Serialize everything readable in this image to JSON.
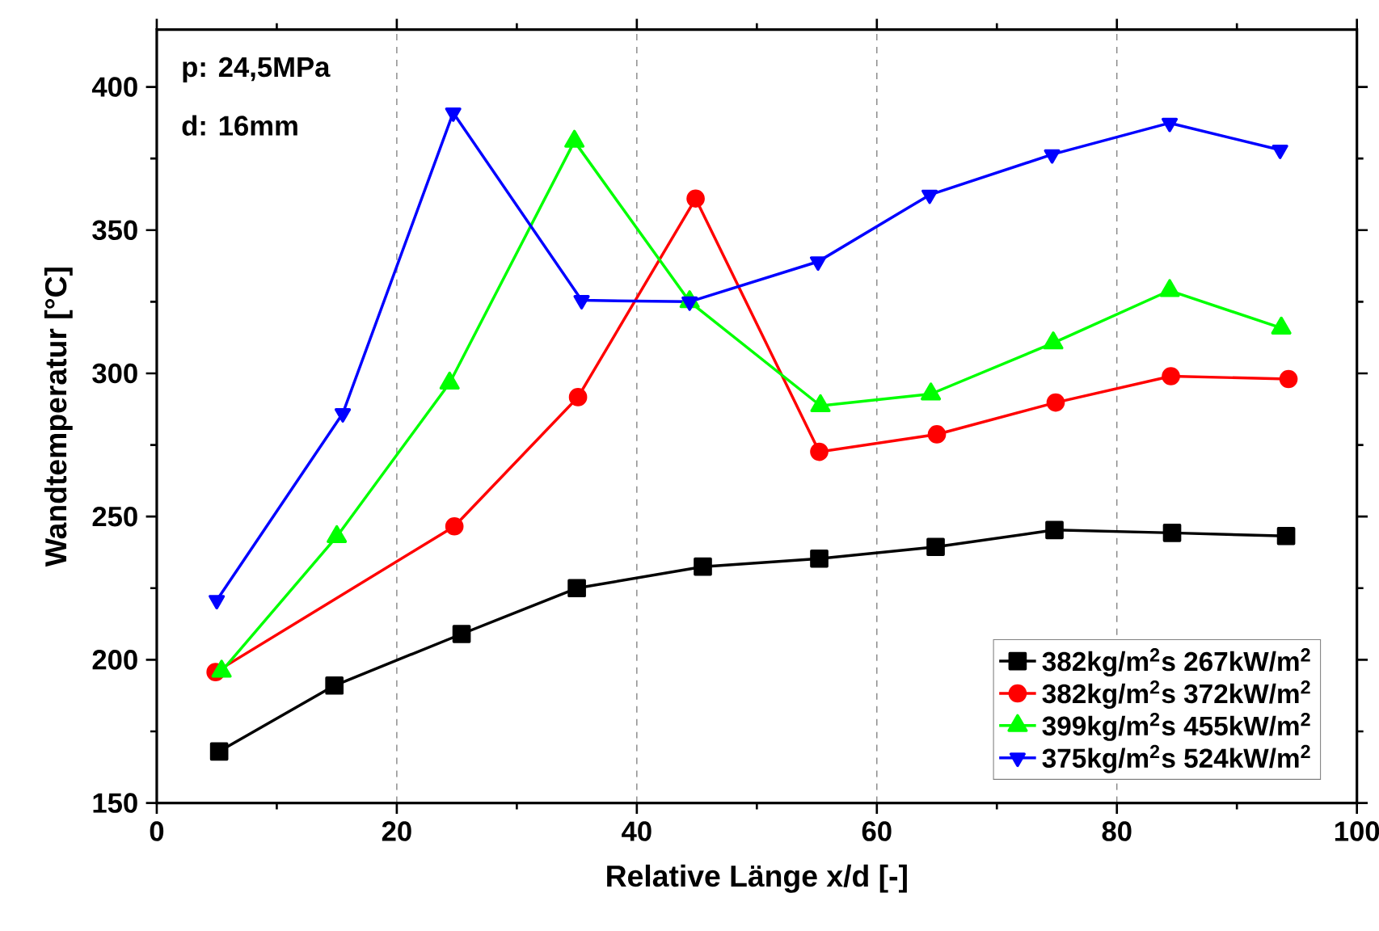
{
  "chart_data": {
    "type": "line",
    "xlabel": "Relative Länge x/d [-]",
    "ylabel": "Wandtemperatur [°C]",
    "annotations": [
      "p: 24,5MPa",
      "d: 16mm"
    ],
    "xlim": [
      0,
      100
    ],
    "xticks": [
      0,
      20,
      40,
      60,
      80,
      100
    ],
    "ylim": [
      150,
      420
    ],
    "yticks": [
      150,
      200,
      250,
      300,
      350,
      400
    ],
    "grid": "x",
    "legend": "bottom right",
    "line_style": "solid",
    "series": [
      {
        "name": "382kg/m$^{2}$s 267kW/m$^{2}$",
        "color": "#000000",
        "marker": "square",
        "x": [
          5.2,
          14.8,
          25.4,
          35,
          45.5,
          55.2,
          64.9,
          74.8,
          84.6,
          94.1
        ],
        "values": [
          168,
          191,
          209,
          225,
          232.5,
          235.3,
          239.4,
          245.3,
          244.3,
          243.2
        ]
      },
      {
        "name": "382kg/m$^{2}$s 372kW/m$^{2}$",
        "color": "#ff0000",
        "marker": "circle",
        "x": [
          4.9,
          24.8,
          35.1,
          44.9,
          55.2,
          65,
          74.9,
          84.5,
          94.3
        ],
        "values": [
          195.7,
          246.6,
          291.7,
          361,
          272.6,
          278.7,
          289.8,
          299,
          298
        ]
      },
      {
        "name": "399kg/m$^{2}$s 455kW/m$^{2}$",
        "color": "#00ff00",
        "marker": "triangle",
        "x": [
          5.4,
          15,
          24.4,
          34.8,
          44.4,
          55.3,
          64.5,
          74.7,
          84.4,
          93.7
        ],
        "values": [
          196,
          243,
          296.6,
          381,
          325,
          288.7,
          292.8,
          310.6,
          328.9,
          315.8
        ]
      },
      {
        "name": "375kg/m$^{2}$s 524kW/m$^{2}$",
        "color": "#0000ff",
        "marker": "triangle-down",
        "x": [
          5,
          15.5,
          24.7,
          35.4,
          44.4,
          55.1,
          64.4,
          74.6,
          84.4,
          93.6
        ],
        "values": [
          220.8,
          286,
          391,
          325.5,
          325,
          339,
          362.3,
          376.4,
          387.4,
          378
        ]
      }
    ]
  }
}
